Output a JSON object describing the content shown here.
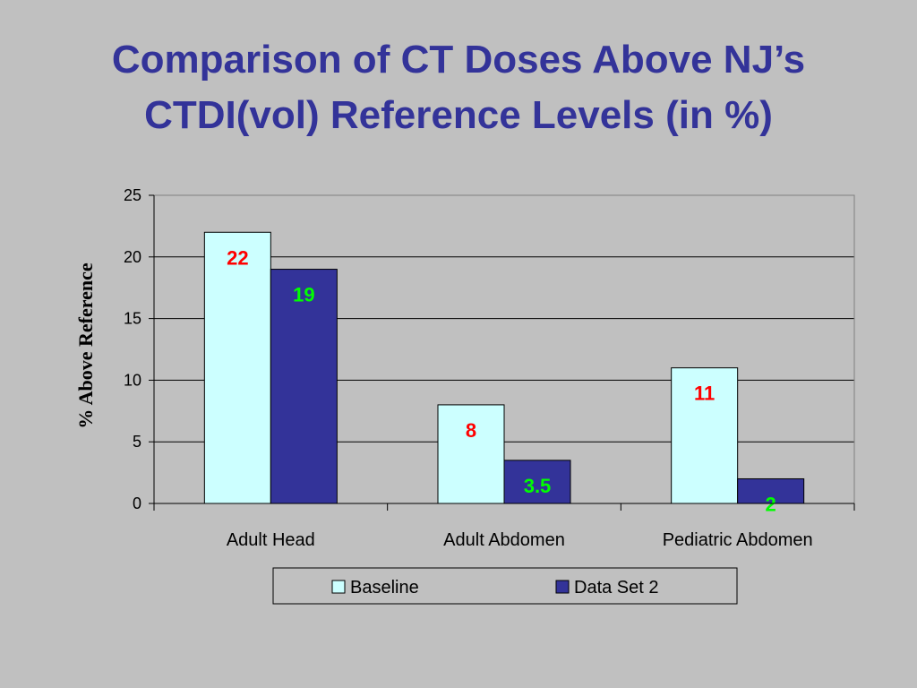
{
  "slide": {
    "title_line1": "Comparison of CT Doses Above NJ’s",
    "title_line2": "CTDI(vol) Reference Levels (in %)"
  },
  "chart_data": {
    "type": "bar",
    "title": "",
    "xlabel": "",
    "ylabel": "% Above Reference",
    "ylim": [
      0,
      25
    ],
    "yticks": [
      0,
      5,
      10,
      15,
      20,
      25
    ],
    "grid": true,
    "legend": "bottom",
    "categories": [
      "Adult Head",
      "Adult Abdomen",
      "Pediatric Abdomen"
    ],
    "series": [
      {
        "name": "Baseline",
        "values": [
          22,
          8,
          11
        ],
        "color": "#ccffff",
        "label_color": "#ff0000",
        "labels": [
          "22",
          "8",
          "11"
        ]
      },
      {
        "name": "Data Set 2",
        "values": [
          19,
          3.5,
          2
        ],
        "color": "#333399",
        "label_color": "#00ff00",
        "labels": [
          "19",
          "3.5",
          "2"
        ]
      }
    ]
  }
}
